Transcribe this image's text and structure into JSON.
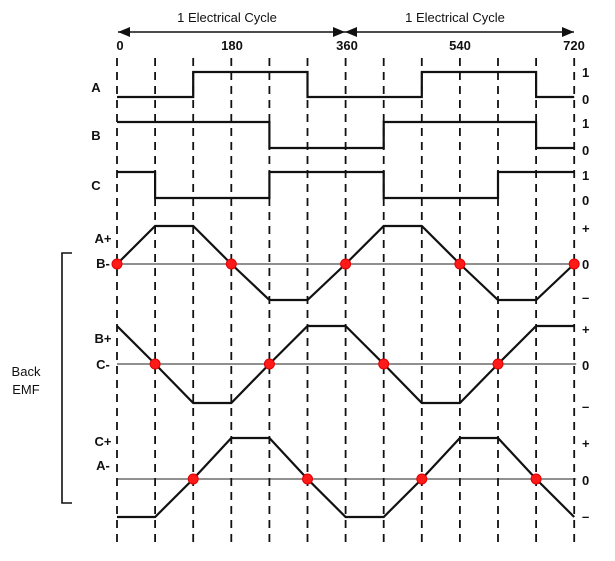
{
  "cycle_labels": [
    "1 Electrical Cycle",
    "1 Electrical Cycle"
  ],
  "angle_ticks": [
    "0",
    "180",
    "360",
    "540",
    "720"
  ],
  "hall_signals": [
    {
      "name": "A",
      "high_label": "1",
      "low_label": "0",
      "levels": [
        0,
        0,
        1,
        1,
        1,
        0,
        0,
        0,
        1,
        1,
        1,
        0
      ]
    },
    {
      "name": "B",
      "high_label": "1",
      "low_label": "0",
      "levels": [
        1,
        1,
        1,
        1,
        0,
        0,
        0,
        1,
        1,
        1,
        1,
        0
      ]
    },
    {
      "name": "C",
      "high_label": "1",
      "low_label": "0",
      "levels": [
        1,
        0,
        0,
        0,
        1,
        1,
        1,
        0,
        0,
        0,
        1,
        1
      ]
    }
  ],
  "emf_group_label_line1": "Back",
  "emf_group_label_line2": "EMF",
  "emf_signals": [
    {
      "label_top": "A+",
      "label_zero": "B-",
      "plus": "+",
      "zero": "0",
      "minus": "–",
      "values": [
        0,
        1,
        1,
        0,
        -1,
        -1,
        0,
        1,
        1,
        0,
        -1,
        -1,
        0
      ],
      "crossings": [
        0,
        3,
        6,
        9,
        12
      ]
    },
    {
      "label_top": "B+",
      "label_zero": "C-",
      "plus": "+",
      "zero": "0",
      "minus": "–",
      "values": [
        1,
        0,
        -1,
        -1,
        0,
        1,
        1,
        0,
        -1,
        -1,
        0,
        1,
        1
      ],
      "crossings": [
        1,
        4,
        7,
        10
      ]
    },
    {
      "label_top": "C+",
      "label_zero": "A-",
      "plus": "+",
      "zero": "0",
      "minus": "–",
      "values": [
        -1,
        -1,
        0,
        1,
        1,
        0,
        -1,
        -1,
        0,
        1,
        1,
        0,
        -1
      ],
      "crossings": [
        2,
        5,
        8,
        11
      ]
    }
  ]
}
